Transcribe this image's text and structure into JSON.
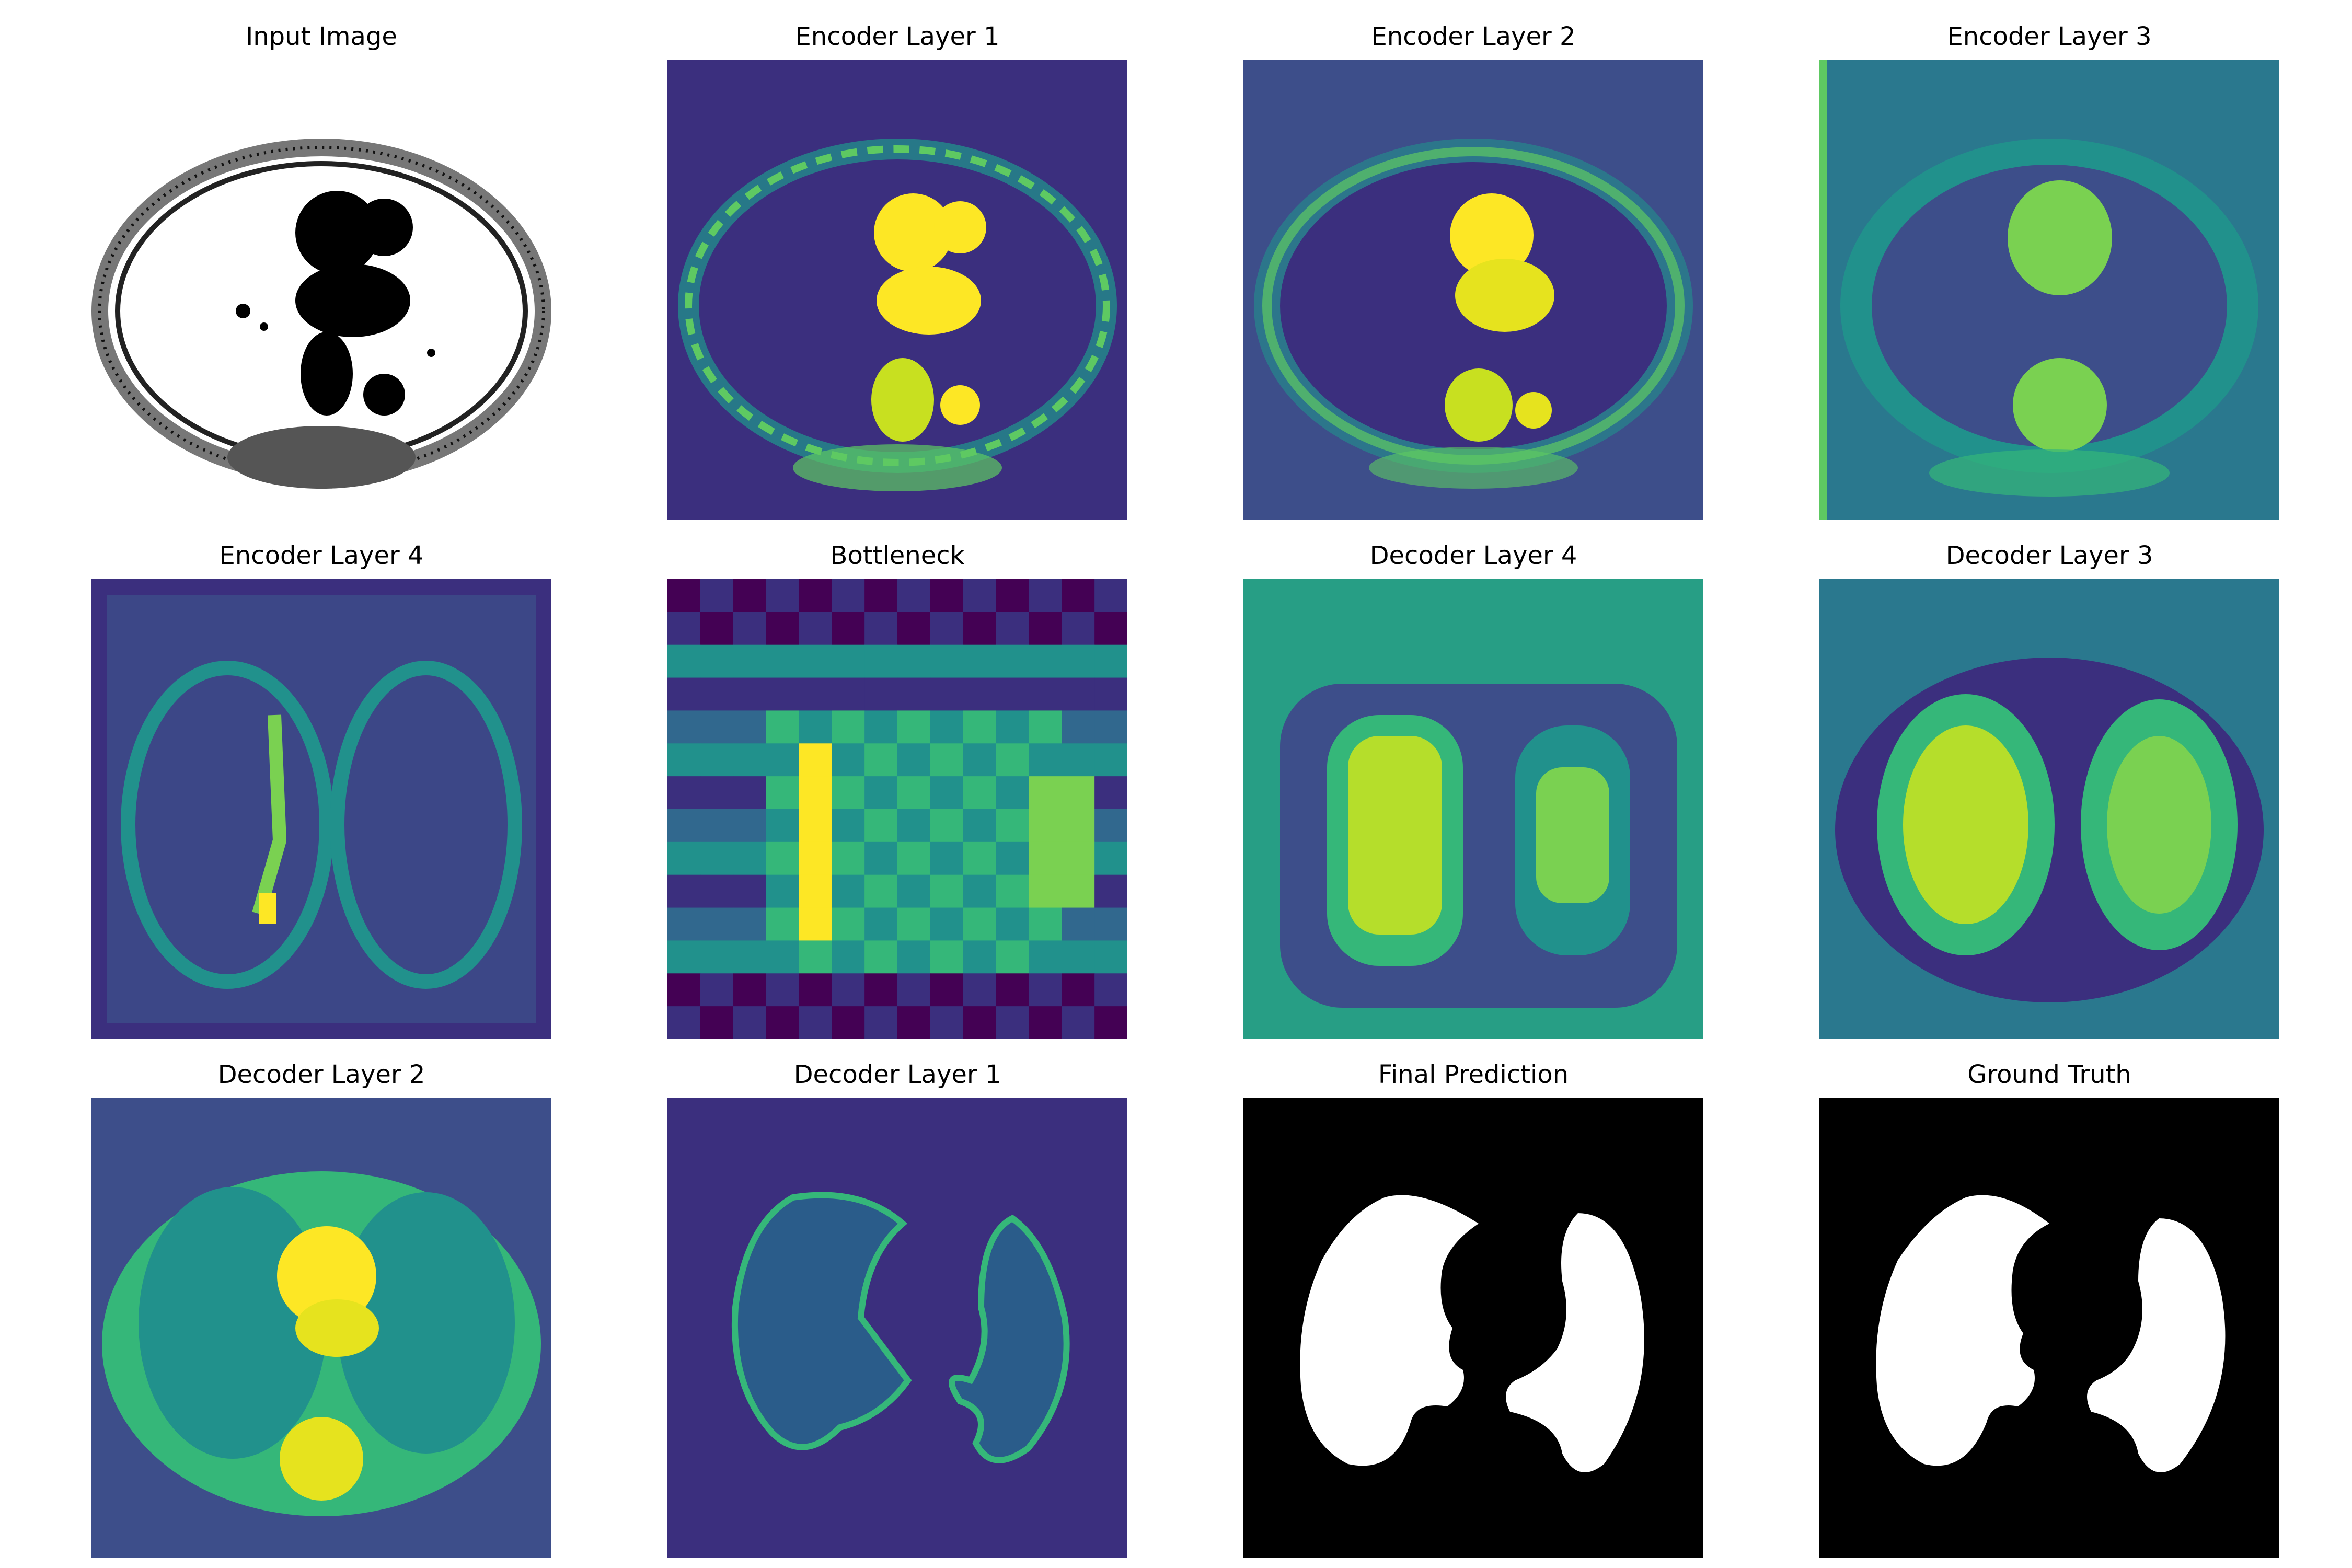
{
  "figure": {
    "panels": [
      {
        "title": "Input Image",
        "kind": "input"
      },
      {
        "title": "Encoder Layer 1",
        "kind": "enc1"
      },
      {
        "title": "Encoder Layer 2",
        "kind": "enc2"
      },
      {
        "title": "Encoder Layer 3",
        "kind": "enc3"
      },
      {
        "title": "Encoder Layer 4",
        "kind": "enc4"
      },
      {
        "title": "Bottleneck",
        "kind": "bottleneck"
      },
      {
        "title": "Decoder Layer 4",
        "kind": "dec4"
      },
      {
        "title": "Decoder Layer 3",
        "kind": "dec3"
      },
      {
        "title": "Decoder Layer 2",
        "kind": "dec2"
      },
      {
        "title": "Decoder Layer 1",
        "kind": "dec1"
      },
      {
        "title": "Final Prediction",
        "kind": "mask"
      },
      {
        "title": "Ground Truth",
        "kind": "mask"
      }
    ]
  },
  "colors": {
    "viridis_dark": "#440154",
    "viridis_purple": "#3b2f7e",
    "viridis_blue": "#3d4e8a",
    "viridis_teal": "#21918c",
    "viridis_green": "#5ec962",
    "viridis_yellow": "#fde725",
    "mask_background": "#000000",
    "mask_foreground": "#ffffff"
  }
}
